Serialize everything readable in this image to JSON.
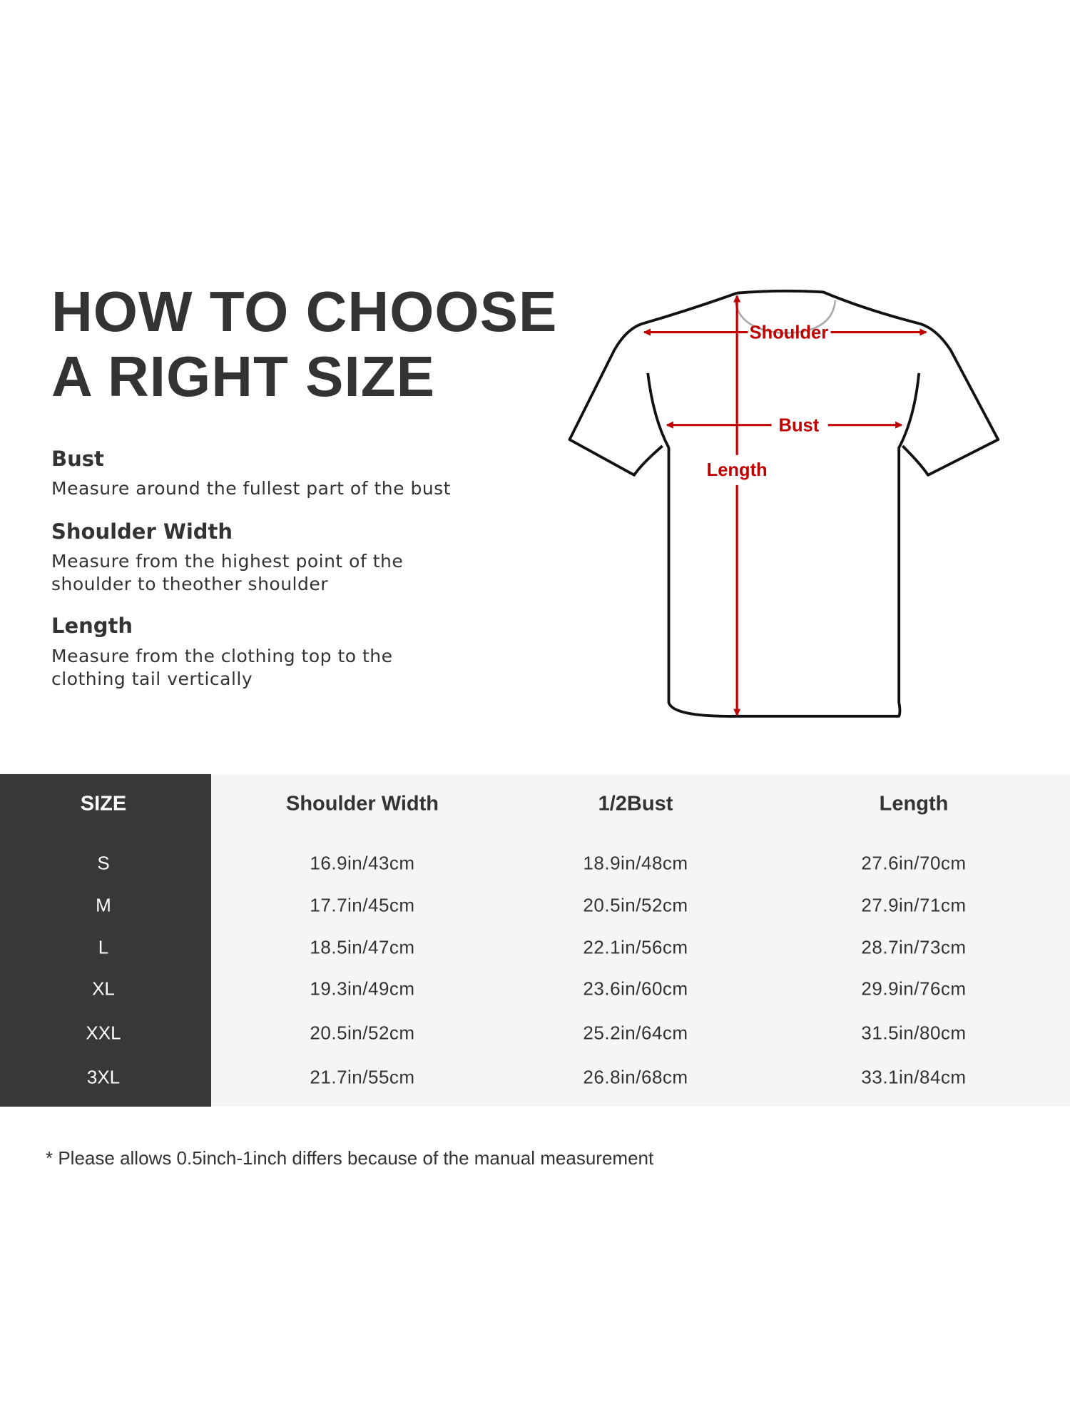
{
  "title": {
    "line1": "HOW TO CHOOSE",
    "line2": "A RIGHT SIZE"
  },
  "guides": [
    {
      "heading": "Bust",
      "lines": [
        "Measure around the fullest part of the bust"
      ]
    },
    {
      "heading": "Shoulder Width",
      "lines": [
        "Measure from the highest point of the",
        "shoulder to theother shoulder"
      ]
    },
    {
      "heading": "Length",
      "lines": [
        "Measure from the clothing top to the",
        "clothing tail vertically"
      ]
    }
  ],
  "diagram": {
    "labels": {
      "shoulder": "Shoulder",
      "bust": "Bust",
      "length": "Length"
    },
    "colors": {
      "arrow": "#c00000",
      "outline": "#111111"
    }
  },
  "table": {
    "headers": [
      "SIZE",
      "Shoulder Width",
      "1/2Bust",
      "Length"
    ],
    "rows": [
      [
        "S",
        "16.9in/43cm",
        "18.9in/48cm",
        "27.6in/70cm"
      ],
      [
        "M",
        "17.7in/45cm",
        "20.5in/52cm",
        "27.9in/71cm"
      ],
      [
        "L",
        "18.5in/47cm",
        "22.1in/56cm",
        "28.7in/73cm"
      ],
      [
        "XL",
        "19.3in/49cm",
        "23.6in/60cm",
        "29.9in/76cm"
      ],
      [
        "XXL",
        "20.5in/52cm",
        "25.2in/64cm",
        "31.5in/80cm"
      ],
      [
        "3XL",
        "21.7in/55cm",
        "26.8in/68cm",
        "33.1in/84cm"
      ]
    ],
    "colors": {
      "size_column": "#383838",
      "body": "#f5f5f5"
    }
  },
  "footnote": "* Please allows 0.5inch-1inch differs because of the  manual measurement"
}
